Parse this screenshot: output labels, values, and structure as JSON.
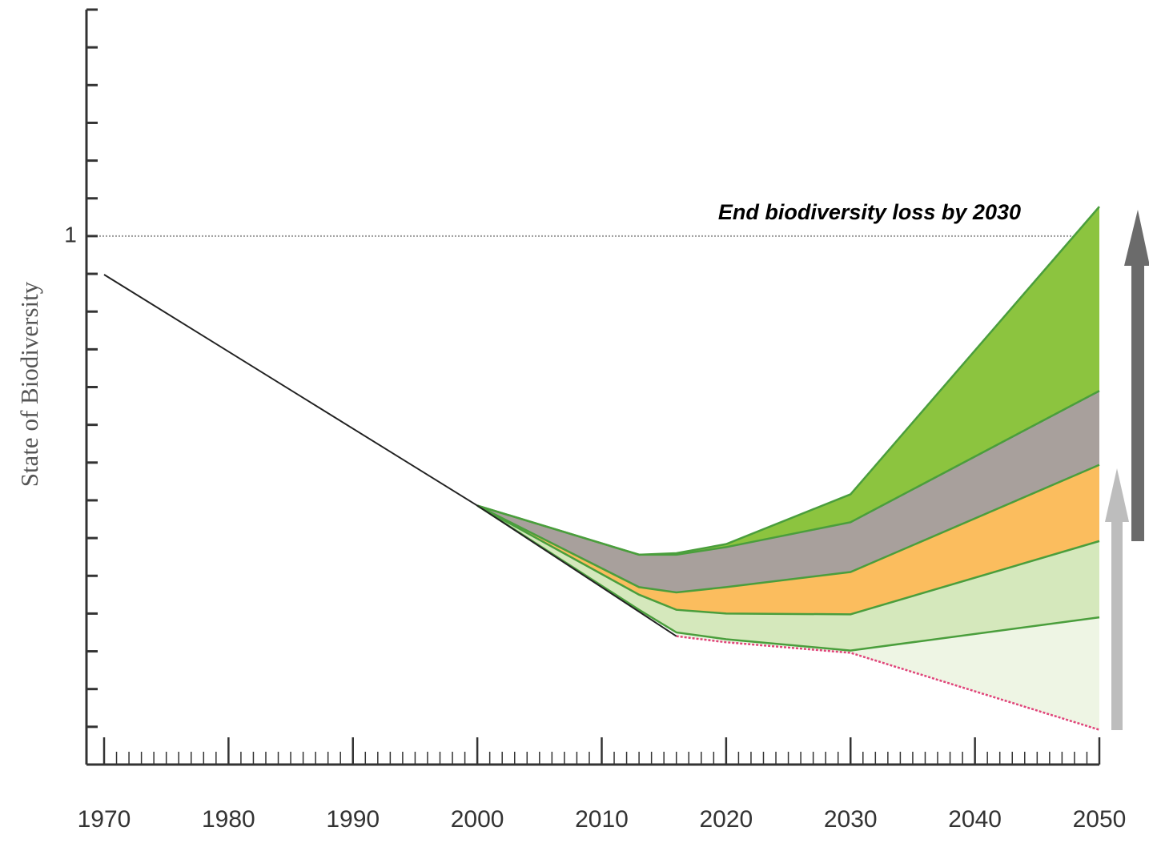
{
  "chart_data": {
    "type": "band",
    "ylabel": "State of Biodiversity",
    "xlim": [
      1970,
      2050
    ],
    "ylim": [
      0.3,
      1.3
    ],
    "xticks": [
      1970,
      1980,
      1990,
      2000,
      2010,
      2020,
      2030,
      2040,
      2050
    ],
    "xminorticks": [
      1971,
      1972,
      1973,
      1974,
      1975,
      1976,
      1977,
      1978,
      1979,
      1981,
      1982,
      1983,
      1984,
      1985,
      1986,
      1987,
      1988,
      1989,
      1991,
      1992,
      1993,
      1994,
      1995,
      1996,
      1997,
      1998,
      1999,
      2001,
      2002,
      2003,
      2004,
      2005,
      2006,
      2007,
      2008,
      2009,
      2011,
      2012,
      2013,
      2014,
      2015,
      2016,
      2017,
      2018,
      2019,
      2021,
      2022,
      2023,
      2024,
      2025,
      2026,
      2027,
      2028,
      2029,
      2031,
      2032,
      2033,
      2034,
      2035,
      2036,
      2037,
      2038,
      2039,
      2041,
      2042,
      2043,
      2044,
      2045,
      2046,
      2047,
      2048,
      2049
    ],
    "yticks": [
      1
    ],
    "yminorticks": [
      0.35,
      0.4,
      0.45,
      0.5,
      0.55,
      0.6,
      0.65,
      0.7,
      0.75,
      0.8,
      0.85,
      0.9,
      0.95,
      1.05,
      1.1,
      1.15,
      1.2,
      1.25,
      1.3
    ],
    "reference": {
      "value": 1,
      "label": "End biodiversity loss by 2030",
      "color": "#999999"
    },
    "history": {
      "color": "#222222",
      "x": [
        1970,
        2000,
        2016
      ],
      "values": [
        0.949,
        0.643,
        0.47
      ]
    },
    "x": [
      2000,
      2013,
      2016,
      2020,
      2030,
      2050
    ],
    "series": [
      {
        "color": "#e0457a",
        "values": [
          null,
          null,
          0.47,
          0.462,
          0.448,
          0.346
        ]
      },
      {
        "color": "#4a9e3c",
        "values": [
          0.643,
          0.505,
          0.475,
          0.466,
          0.451,
          0.495
        ]
      },
      {
        "color": "#4a9e3c",
        "values": [
          0.643,
          0.525,
          0.505,
          0.5,
          0.499,
          0.596
        ]
      },
      {
        "color": "#4a9e3c",
        "values": [
          0.643,
          0.535,
          0.528,
          0.535,
          0.555,
          0.697
        ]
      },
      {
        "color": "#4a9e3c",
        "values": [
          0.643,
          0.578,
          0.578,
          0.588,
          0.621,
          0.795
        ]
      },
      {
        "color": "#4a9e3c",
        "values": [
          0.643,
          0.578,
          0.58,
          0.592,
          0.658,
          1.039
        ]
      }
    ],
    "band_colors": [
      "#eef5e4",
      "#d5e8bc",
      "#fbbd5e",
      "#a8a09c",
      "#8cc43f"
    ]
  }
}
